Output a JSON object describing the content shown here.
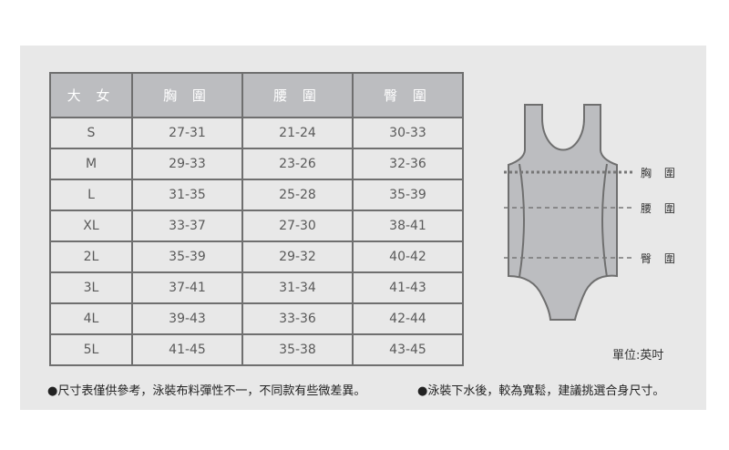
{
  "table": {
    "headers": [
      "大 女",
      "胸 圍",
      "腰 圍",
      "臀 圍"
    ],
    "rows": [
      [
        "S",
        "27-31",
        "21-24",
        "30-33"
      ],
      [
        "M",
        "29-33",
        "23-26",
        "32-36"
      ],
      [
        "L",
        "31-35",
        "25-28",
        "35-39"
      ],
      [
        "XL",
        "33-37",
        "27-30",
        "38-41"
      ],
      [
        "2L",
        "35-39",
        "29-32",
        "40-42"
      ],
      [
        "3L",
        "37-41",
        "31-34",
        "41-43"
      ],
      [
        "4L",
        "39-43",
        "33-36",
        "42-44"
      ],
      [
        "5L",
        "41-45",
        "35-38",
        "43-45"
      ]
    ]
  },
  "diagram": {
    "chest_label": "胸 圍",
    "waist_label": "腰 圍",
    "hip_label": "臀 圍",
    "garment_icon": "swimsuit-icon"
  },
  "unit": "單位:英吋",
  "notes": [
    "●尺寸表僅供參考，泳裝布料彈性不一，不同款有些微差異。",
    "●泳裝下水後，較為寬鬆，建議挑選合身尺寸。"
  ],
  "colors": {
    "header_bg": "#bcbdc0",
    "panel_bg": "#e8e8e8",
    "border": "#6f6f6f"
  }
}
